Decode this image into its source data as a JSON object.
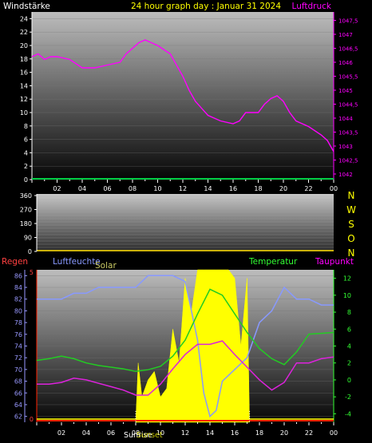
{
  "header": {
    "left_label": "Windstärke",
    "title": "24 hour graph day : Januar 31 2024",
    "right_label": "Luftdruck"
  },
  "colors": {
    "background": "#000000",
    "axis_white": "#ffffff",
    "title_yellow": "#ffff00",
    "pressure": "#ff00ff",
    "wind_bar": "#00cc44",
    "solar_fill": "#ffff00",
    "humidity": "#8899ff",
    "temperature": "#22cc22",
    "dewpoint": "#dd22dd",
    "regen_red": "#ff2200",
    "regen_label": "#ff4040",
    "temp_axis": "#33ff33",
    "hum_axis": "#9999ff"
  },
  "labels": {
    "regen": "Regen",
    "luftfeuchte": "Luftfeuchte",
    "solar": "Solar",
    "temperatur": "Temperatur",
    "taupunkt": "Taupunkt",
    "sunrise": "Sunrise",
    "sunset": "Sunset"
  },
  "x_ticks": [
    "02",
    "04",
    "06",
    "08",
    "10",
    "12",
    "14",
    "16",
    "18",
    "20",
    "22",
    "00"
  ],
  "chart_data": [
    {
      "type": "line",
      "name": "pressure_wind_panel",
      "title": "24 hour graph day : Januar 31 2024",
      "left_axis": {
        "label": "Windstärke",
        "ticks": [
          "0",
          "2",
          "4",
          "6",
          "8",
          "10",
          "12",
          "14",
          "16",
          "18",
          "20",
          "22",
          "24"
        ],
        "ylim": [
          0,
          25
        ]
      },
      "right_axis": {
        "label": "Luftdruck",
        "ticks": [
          "1042",
          "1042,5",
          "1043",
          "1043,5",
          "1044",
          "1044,5",
          "1045",
          "1045,5",
          "1046",
          "1046,5",
          "1047",
          "1047,5"
        ],
        "ylim": [
          1041.8,
          1047.8
        ]
      },
      "x": [
        "00:00",
        "24:00"
      ],
      "series": [
        {
          "name": "Luftdruck",
          "axis": "right",
          "x": [
            0,
            0.5,
            1,
            1.5,
            2,
            3,
            4,
            5,
            6,
            7,
            7.5,
            8,
            8.5,
            9,
            9.5,
            10,
            11,
            11.5,
            12,
            12.5,
            13,
            14,
            15,
            16,
            16.5,
            17,
            18,
            18.5,
            19,
            19.5,
            20,
            20.5,
            21,
            22,
            23,
            23.5,
            24
          ],
          "values": [
            1046.2,
            1046.3,
            1046.1,
            1046.2,
            1046.2,
            1046.1,
            1045.8,
            1045.8,
            1045.9,
            1046.0,
            1046.3,
            1046.5,
            1046.7,
            1046.8,
            1046.7,
            1046.6,
            1046.3,
            1045.9,
            1045.5,
            1045.0,
            1044.6,
            1044.1,
            1043.9,
            1043.8,
            1043.9,
            1044.2,
            1044.2,
            1044.5,
            1044.7,
            1044.8,
            1044.6,
            1044.2,
            1043.9,
            1043.7,
            1043.4,
            1043.2,
            1042.8
          ]
        },
        {
          "name": "Windstärke",
          "axis": "left",
          "x": [
            0,
            24
          ],
          "values": [
            0,
            0
          ]
        }
      ]
    },
    {
      "type": "line",
      "name": "wind_direction_panel",
      "left_axis": {
        "ticks": [
          "0",
          "90",
          "180",
          "270",
          "360"
        ],
        "ylim": [
          0,
          360
        ]
      },
      "right_axis": {
        "ticks": [
          "N",
          "O",
          "S",
          "W",
          "N"
        ]
      },
      "series": []
    },
    {
      "type": "line",
      "name": "climate_panel",
      "left_axis": {
        "label": "Luftfeuchte",
        "ticks": [
          "62",
          "64",
          "66",
          "68",
          "70",
          "72",
          "74",
          "76",
          "78",
          "80",
          "82",
          "84",
          "86"
        ],
        "ylim": [
          61,
          87
        ]
      },
      "right_axis": {
        "label": "Temperatur",
        "ticks": [
          "-4",
          "-2",
          "0",
          "2",
          "4",
          "6",
          "8",
          "10",
          "12"
        ],
        "ylim": [
          -5,
          13
        ]
      },
      "regen_axis": {
        "label": "Regen",
        "ticks": [
          "0",
          "5"
        ]
      },
      "series": [
        {
          "name": "Luftfeuchte",
          "axis": "left",
          "x": [
            0,
            1,
            2,
            3,
            4,
            5,
            6,
            7,
            8,
            9,
            10,
            11,
            12,
            12.5,
            13,
            13.5,
            14,
            14.5,
            15,
            16,
            17,
            18,
            19,
            20,
            21,
            22,
            23,
            24
          ],
          "values": [
            82,
            82,
            82,
            83,
            83,
            84,
            84,
            84,
            84,
            86,
            86,
            86,
            85,
            80,
            75,
            66,
            62,
            63,
            68,
            70,
            72,
            78,
            80,
            84,
            82,
            82,
            81,
            81
          ]
        },
        {
          "name": "Temperatur",
          "axis": "right",
          "x": [
            0,
            1,
            2,
            3,
            4,
            5,
            6,
            7,
            8,
            9,
            10,
            11,
            12,
            13,
            14,
            15,
            16,
            17,
            18,
            19,
            20,
            21,
            22,
            23,
            24
          ],
          "values": [
            2.3,
            2.5,
            2.8,
            2.5,
            2.0,
            1.7,
            1.5,
            1.3,
            1.0,
            1.2,
            1.6,
            2.8,
            4.7,
            7.8,
            10.7,
            10.0,
            7.8,
            5.6,
            3.7,
            2.5,
            1.8,
            3.3,
            5.4,
            5.5,
            5.6
          ]
        },
        {
          "name": "Taupunkt",
          "axis": "right",
          "x": [
            0,
            1,
            2,
            3,
            4,
            5,
            6,
            7,
            8,
            9,
            10,
            11,
            12,
            13,
            14,
            15,
            16,
            17,
            18,
            19,
            20,
            21,
            22,
            23,
            24
          ],
          "values": [
            -0.5,
            -0.5,
            -0.3,
            0.2,
            0.0,
            -0.4,
            -0.8,
            -1.2,
            -1.8,
            -1.8,
            -0.5,
            1.3,
            3.0,
            4.2,
            4.2,
            4.6,
            3.0,
            1.5,
            0.0,
            -1.2,
            -0.3,
            2.0,
            2.0,
            2.5,
            2.7
          ]
        },
        {
          "name": "Solar",
          "axis": "right",
          "x": [
            8,
            8.2,
            8.5,
            9,
            9.5,
            10,
            10.5,
            11,
            11.5,
            12,
            12.5,
            13,
            13.5,
            14,
            14.5,
            15,
            15.5,
            16,
            16.5,
            17,
            17.2
          ],
          "values": [
            -5,
            2,
            -2,
            0,
            1,
            -2,
            -1,
            6,
            2,
            12,
            8,
            13,
            13,
            13,
            13,
            13,
            13,
            12,
            4,
            12,
            -5
          ]
        }
      ]
    }
  ]
}
